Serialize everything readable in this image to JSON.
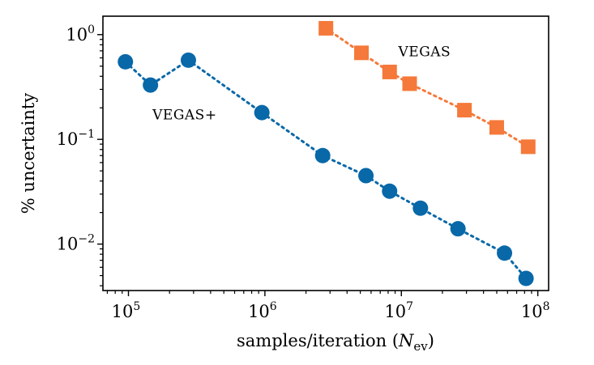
{
  "chart_data": {
    "type": "scatter",
    "xlabel": {
      "prefix": "samples/iteration (",
      "symbol": "N",
      "subscript": "ev",
      "suffix": ")"
    },
    "ylabel": "% uncertainty",
    "xscale": "log",
    "yscale": "log",
    "xlim": [
      65000,
      120000000
    ],
    "ylim": [
      0.0036,
      1.5
    ],
    "xticks": [
      {
        "value": 100000,
        "base": "10",
        "exp": "5"
      },
      {
        "value": 1000000,
        "base": "10",
        "exp": "6"
      },
      {
        "value": 10000000,
        "base": "10",
        "exp": "7"
      },
      {
        "value": 100000000,
        "base": "10",
        "exp": "8"
      }
    ],
    "yticks": [
      {
        "value": 1,
        "base": "10",
        "exp": "0"
      },
      {
        "value": 0.1,
        "base": "10",
        "exp": "−1"
      },
      {
        "value": 0.01,
        "base": "10",
        "exp": "−2"
      }
    ],
    "grid": false,
    "series": [
      {
        "name": "VEGAS+",
        "marker": "circle",
        "line": "dotted",
        "color": "#0868a8",
        "label_at": {
          "x": 150000,
          "y": 0.155
        },
        "x": [
          95000,
          145000,
          275000,
          950000,
          2650000,
          5500000,
          8200000,
          13800000,
          26000000,
          57000000,
          82000000
        ],
        "y": [
          0.55,
          0.33,
          0.57,
          0.18,
          0.07,
          0.045,
          0.032,
          0.022,
          0.014,
          0.0082,
          0.0047
        ]
      },
      {
        "name": "VEGAS",
        "marker": "square",
        "line": "dotted",
        "color": "#f5793a",
        "label_at": {
          "x": 9500000,
          "y": 0.62
        },
        "x": [
          2800000,
          5100000,
          8200000,
          11500000,
          29000000,
          50000000,
          85000000
        ],
        "y": [
          1.15,
          0.67,
          0.44,
          0.34,
          0.19,
          0.13,
          0.085
        ]
      }
    ]
  }
}
